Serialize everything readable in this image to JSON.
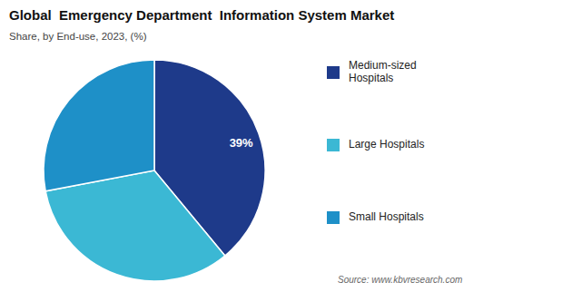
{
  "chart_data": {
    "type": "pie",
    "title": "Global  Emergency Department  Information System Market",
    "subtitle": "Share, by End-use, 2023, (%)",
    "source": "Source: www.kbvresearch.com",
    "categories": [
      "Medium-sized\nHospitals",
      "Large Hospitals",
      "Small Hospitals"
    ],
    "values": [
      39,
      33,
      28
    ],
    "colors": [
      "#1e3a8a",
      "#3bb8d4",
      "#1e90c8"
    ],
    "annotation": "39%",
    "legend": "right"
  }
}
